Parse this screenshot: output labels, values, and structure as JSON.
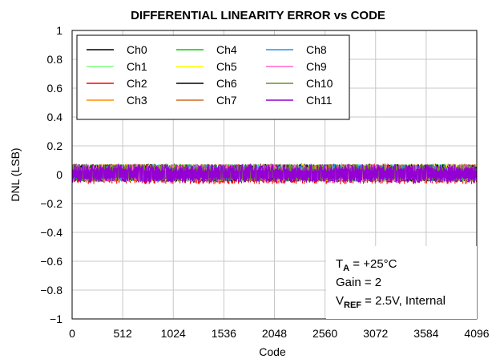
{
  "chart_data": {
    "type": "line",
    "title": "DIFFERENTIAL LINEARITY ERROR vs CODE",
    "xlabel": "Code",
    "ylabel": "DNL (LSB)",
    "xlim": [
      0,
      4096
    ],
    "ylim": [
      -1,
      1
    ],
    "xticks": [
      "0",
      "512",
      "1024",
      "1536",
      "2048",
      "2560",
      "3072",
      "3584",
      "4096"
    ],
    "yticks": [
      "1",
      "0.8",
      "0.6",
      "0.4",
      "0.2",
      "0",
      "−0.2",
      "−0.4",
      "−0.6",
      "−0.8",
      "−1"
    ],
    "grid": true,
    "legend_position": "top-left",
    "series": [
      {
        "name": "Ch0",
        "color": "#000000",
        "dnl_range": [
          -0.05,
          0.07
        ]
      },
      {
        "name": "Ch1",
        "color": "#7fff7f",
        "dnl_range": [
          -0.05,
          0.07
        ]
      },
      {
        "name": "Ch2",
        "color": "#ff0000",
        "dnl_range": [
          -0.07,
          0.07
        ]
      },
      {
        "name": "Ch3",
        "color": "#ff8c00",
        "dnl_range": [
          -0.05,
          0.07
        ]
      },
      {
        "name": "Ch4",
        "color": "#00cc00",
        "dnl_range": [
          -0.05,
          0.07
        ]
      },
      {
        "name": "Ch5",
        "color": "#ffff00",
        "dnl_range": [
          -0.05,
          0.07
        ]
      },
      {
        "name": "Ch6",
        "color": "#000000",
        "dnl_range": [
          -0.05,
          0.07
        ]
      },
      {
        "name": "Ch7",
        "color": "#d2691e",
        "dnl_range": [
          -0.05,
          0.07
        ]
      },
      {
        "name": "Ch8",
        "color": "#1e90ff",
        "dnl_range": [
          -0.05,
          0.07
        ]
      },
      {
        "name": "Ch9",
        "color": "#ff66cc",
        "dnl_range": [
          -0.05,
          0.07
        ]
      },
      {
        "name": "Ch10",
        "color": "#6b8e23",
        "dnl_range": [
          -0.05,
          0.07
        ]
      },
      {
        "name": "Ch11",
        "color": "#9400d3",
        "dnl_range": [
          -0.06,
          0.07
        ]
      }
    ],
    "annotation": {
      "ta_main": "T",
      "ta_sub": "A",
      "ta_rest": " = +25°C",
      "gain": "Gain = 2",
      "vref_main": "V",
      "vref_sub": "REF",
      "vref_rest": " = 2.5V, Internal"
    }
  }
}
